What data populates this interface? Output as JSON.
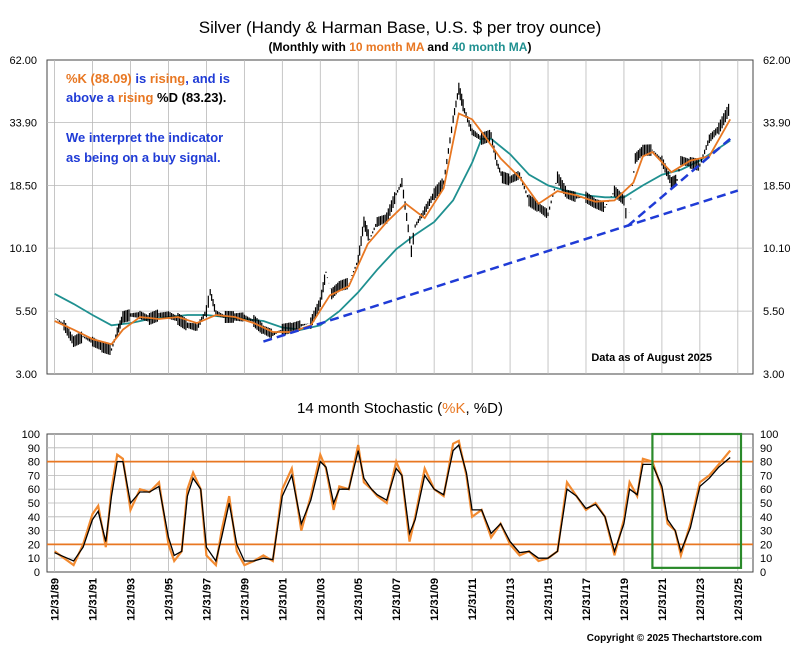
{
  "colors": {
    "price": "#000000",
    "ma10": "#e87722",
    "ma40": "#1f9090",
    "trendline": "#1f3bd6",
    "stoch_k": "#f28a30",
    "stoch_d": "#000000",
    "ref_lines": "#e87722",
    "highlight_box": "#2a8a2a",
    "annotation_blue": "#1f3bd6",
    "annotation_orange": "#e87722",
    "grid": "#b8b8b8"
  },
  "chart_data": [
    {
      "type": "line",
      "title": "Silver (Handy & Harman Base, U.S. $ per troy ounce)",
      "subtitle": {
        "prefix": "(Monthly with ",
        "ma10": "10 month MA",
        "middle": " and ",
        "ma40": "40 month MA",
        "suffix": ")"
      },
      "y_scale": "log",
      "ylim": [
        3.0,
        62.0
      ],
      "y_ticks": [
        3.0,
        5.5,
        10.1,
        18.5,
        33.9,
        62.0
      ],
      "y_tick_labels": [
        "3.00",
        "5.50",
        "10.10",
        "18.50",
        "33.90",
        "62.00"
      ],
      "xlim": [
        1989.6,
        2026.8
      ],
      "grid": true,
      "series": [
        {
          "name": "Silver monthly",
          "x": [
            1990.0,
            1990.5,
            1991.0,
            1991.5,
            1992.0,
            1992.5,
            1993.0,
            1993.3,
            1993.6,
            1994.0,
            1994.5,
            1995.0,
            1995.5,
            1996.0,
            1996.5,
            1997.0,
            1997.5,
            1998.0,
            1998.2,
            1998.5,
            1999.0,
            1999.5,
            2000.0,
            2000.5,
            2001.0,
            2001.5,
            2002.0,
            2002.5,
            2003.0,
            2003.5,
            2004.0,
            2004.3,
            2004.6,
            2005.0,
            2005.5,
            2006.0,
            2006.3,
            2006.6,
            2007.0,
            2007.5,
            2008.0,
            2008.3,
            2008.8,
            2009.0,
            2009.5,
            2010.0,
            2010.5,
            2011.0,
            2011.3,
            2011.6,
            2012.0,
            2012.5,
            2013.0,
            2013.3,
            2013.6,
            2014.0,
            2014.5,
            2015.0,
            2015.5,
            2016.0,
            2016.5,
            2017.0,
            2017.5,
            2018.0,
            2018.5,
            2019.0,
            2019.5,
            2020.0,
            2020.2,
            2020.6,
            2021.0,
            2021.5,
            2022.0,
            2022.5,
            2022.8,
            2023.0,
            2023.5,
            2024.0,
            2024.5,
            2025.0,
            2025.6
          ],
          "values": [
            5.2,
            4.8,
            4.1,
            4.3,
            4.1,
            3.9,
            3.8,
            4.5,
            5.2,
            5.3,
            5.3,
            5.1,
            5.3,
            5.3,
            5.1,
            4.8,
            4.7,
            5.5,
            6.6,
            5.4,
            5.2,
            5.2,
            5.2,
            5.0,
            4.6,
            4.4,
            4.6,
            4.7,
            4.8,
            4.9,
            6.0,
            8.0,
            6.5,
            7.0,
            7.2,
            9.0,
            13.0,
            11.0,
            13.0,
            13.5,
            17.0,
            19.0,
            9.8,
            12.5,
            14.5,
            17.0,
            19.0,
            35.0,
            47.0,
            38.0,
            31.0,
            29.0,
            30.0,
            23.0,
            20.0,
            19.5,
            20.5,
            16.0,
            15.0,
            14.0,
            20.0,
            17.0,
            16.5,
            16.5,
            15.5,
            15.0,
            17.5,
            16.0,
            12.5,
            24.0,
            26.0,
            26.0,
            23.5,
            19.0,
            19.5,
            23.5,
            23.0,
            22.5,
            29.0,
            32.0,
            39.5
          ],
          "values_note": "price (log axis)"
        },
        {
          "name": "10 month MA",
          "x": [
            1990.0,
            1991.0,
            1992.0,
            1993.0,
            1993.6,
            1994.5,
            1995.5,
            1996.5,
            1997.5,
            1998.5,
            1999.5,
            2000.5,
            2001.5,
            2002.5,
            2003.5,
            2004.5,
            2005.5,
            2006.5,
            2007.5,
            2008.5,
            2009.5,
            2010.5,
            2011.3,
            2012.0,
            2012.5,
            2013.5,
            2014.5,
            2015.5,
            2016.5,
            2017.5,
            2018.5,
            2019.5,
            2020.5,
            2021.0,
            2021.5,
            2022.5,
            2023.5,
            2024.5,
            2025.6
          ],
          "values": [
            5.0,
            4.6,
            4.2,
            4.0,
            4.6,
            5.2,
            5.1,
            5.2,
            4.9,
            5.3,
            5.2,
            4.9,
            4.5,
            4.5,
            4.8,
            6.4,
            7.0,
            10.5,
            13.0,
            15.5,
            13.5,
            18.0,
            37.0,
            35.0,
            31.0,
            24.0,
            20.0,
            15.5,
            17.5,
            16.8,
            15.8,
            16.0,
            19.0,
            24.5,
            25.5,
            21.0,
            23.5,
            24.5,
            35.0
          ]
        },
        {
          "name": "40 month MA",
          "x": [
            1990.0,
            1991.0,
            1992.0,
            1993.0,
            1994.0,
            1995.0,
            1996.0,
            1997.0,
            1998.0,
            1999.0,
            2000.0,
            2001.0,
            2002.0,
            2003.0,
            2004.0,
            2005.0,
            2006.0,
            2007.0,
            2008.0,
            2009.0,
            2010.0,
            2011.0,
            2012.0,
            2012.5,
            2013.0,
            2014.0,
            2015.0,
            2016.0,
            2017.0,
            2018.0,
            2019.0,
            2020.0,
            2021.0,
            2022.0,
            2023.0,
            2024.0,
            2025.6
          ],
          "values": [
            6.5,
            5.9,
            5.3,
            4.8,
            4.9,
            5.1,
            5.2,
            5.3,
            5.3,
            5.2,
            5.1,
            5.0,
            4.7,
            4.6,
            4.8,
            5.5,
            6.6,
            8.2,
            10.0,
            11.5,
            13.0,
            16.0,
            23.0,
            29.0,
            29.0,
            25.0,
            20.5,
            18.5,
            17.5,
            16.8,
            16.5,
            16.5,
            18.5,
            20.5,
            21.5,
            23.5,
            28.5
          ]
        },
        {
          "name": "long-term trendline",
          "x": [
            2001.0,
            2026.0
          ],
          "values": [
            4.1,
            17.6
          ]
        },
        {
          "name": "short-term trendline",
          "x": [
            2020.2,
            2025.6
          ],
          "values": [
            12.5,
            29.0
          ]
        }
      ],
      "annotations": [
        {
          "segments": [
            {
              "text": "%K (88.09)",
              "color": "orange"
            },
            {
              "text": " is ",
              "color": "blue"
            },
            {
              "text": "rising",
              "color": "orange"
            },
            {
              "text": ", and is",
              "color": "blue"
            }
          ]
        },
        {
          "segments": [
            {
              "text": "above a ",
              "color": "blue"
            },
            {
              "text": "rising",
              "color": "orange"
            },
            {
              "text": " %D (83.23).",
              "color": "black"
            }
          ]
        },
        {
          "segments": [
            {
              "text": "We interpret the indicator",
              "color": "blue"
            }
          ]
        },
        {
          "segments": [
            {
              "text": "as being on a buy signal.",
              "color": "blue"
            }
          ]
        }
      ],
      "data_note": "Data as of August 2025"
    },
    {
      "type": "line",
      "title": {
        "prefix": "14 month Stochastic (",
        "k": "%K",
        "sep": ", ",
        "d": "%D",
        "suffix": ")"
      },
      "ylim": [
        0,
        100
      ],
      "y_ticks": [
        0,
        10,
        20,
        30,
        40,
        50,
        60,
        70,
        80,
        90,
        100
      ],
      "y_tick_labels": [
        "0",
        "10",
        "20",
        "30",
        "40",
        "50",
        "60",
        "70",
        "80",
        "90",
        "100"
      ],
      "reference_lines": [
        80,
        20
      ],
      "x_tick_labels": [
        "12/31/89",
        "12/31/91",
        "12/31/93",
        "12/31/95",
        "12/31/97",
        "12/31/99",
        "12/31/01",
        "12/31/03",
        "12/31/05",
        "12/31/07",
        "12/31/09",
        "12/31/11",
        "12/31/13",
        "12/31/15",
        "12/31/17",
        "12/31/19",
        "12/31/21",
        "12/31/23",
        "12/31/25"
      ],
      "x_tick_values": [
        1990,
        1992,
        1994,
        1996,
        1998,
        2000,
        2002,
        2004,
        2006,
        2008,
        2010,
        2012,
        2014,
        2016,
        2018,
        2020,
        2022,
        2024,
        2026
      ],
      "highlight_range": {
        "x": [
          2021.5,
          2026.8
        ],
        "y": [
          3,
          100
        ]
      },
      "series": [
        {
          "name": "%K",
          "x": [
            1990.0,
            1990.5,
            1991.0,
            1991.5,
            1992.0,
            1992.3,
            1992.7,
            1993.0,
            1993.3,
            1993.6,
            1994.0,
            1994.5,
            1995.0,
            1995.5,
            1996.0,
            1996.3,
            1996.7,
            1997.0,
            1997.3,
            1997.7,
            1998.0,
            1998.5,
            1998.8,
            1999.2,
            1999.6,
            2000.0,
            2000.5,
            2001.0,
            2001.5,
            2002.0,
            2002.5,
            2003.0,
            2003.5,
            2004.0,
            2004.3,
            2004.7,
            2005.0,
            2005.5,
            2006.0,
            2006.3,
            2006.7,
            2007.0,
            2007.5,
            2008.0,
            2008.3,
            2008.7,
            2009.0,
            2009.5,
            2010.0,
            2010.5,
            2011.0,
            2011.3,
            2011.7,
            2012.0,
            2012.5,
            2013.0,
            2013.5,
            2014.0,
            2014.5,
            2015.0,
            2015.5,
            2016.0,
            2016.5,
            2017.0,
            2017.5,
            2018.0,
            2018.5,
            2019.0,
            2019.5,
            2020.0,
            2020.3,
            2020.7,
            2021.0,
            2021.5,
            2022.0,
            2022.3,
            2022.7,
            2023.0,
            2023.5,
            2024.0,
            2024.5,
            2025.0,
            2025.6
          ],
          "values": [
            15,
            10,
            5,
            20,
            42,
            48,
            18,
            60,
            85,
            82,
            45,
            60,
            58,
            65,
            20,
            8,
            15,
            60,
            72,
            60,
            12,
            5,
            30,
            55,
            15,
            5,
            8,
            12,
            8,
            60,
            75,
            30,
            55,
            85,
            75,
            45,
            62,
            60,
            92,
            65,
            60,
            55,
            50,
            80,
            70,
            22,
            40,
            75,
            60,
            55,
            93,
            95,
            70,
            40,
            45,
            25,
            35,
            20,
            12,
            15,
            8,
            10,
            15,
            65,
            55,
            45,
            50,
            40,
            12,
            38,
            65,
            55,
            82,
            80,
            60,
            35,
            30,
            12,
            35,
            65,
            70,
            78,
            88
          ]
        },
        {
          "name": "%D",
          "x": [
            1990.0,
            1990.5,
            1991.0,
            1991.5,
            1992.0,
            1992.3,
            1992.7,
            1993.0,
            1993.3,
            1993.6,
            1994.0,
            1994.5,
            1995.0,
            1995.5,
            1996.0,
            1996.3,
            1996.7,
            1997.0,
            1997.3,
            1997.7,
            1998.0,
            1998.5,
            1998.8,
            1999.2,
            1999.6,
            2000.0,
            2000.5,
            2001.0,
            2001.5,
            2002.0,
            2002.5,
            2003.0,
            2003.5,
            2004.0,
            2004.3,
            2004.7,
            2005.0,
            2005.5,
            2006.0,
            2006.3,
            2006.7,
            2007.0,
            2007.5,
            2008.0,
            2008.3,
            2008.7,
            2009.0,
            2009.5,
            2010.0,
            2010.5,
            2011.0,
            2011.3,
            2011.7,
            2012.0,
            2012.5,
            2013.0,
            2013.5,
            2014.0,
            2014.5,
            2015.0,
            2015.5,
            2016.0,
            2016.5,
            2017.0,
            2017.5,
            2018.0,
            2018.5,
            2019.0,
            2019.5,
            2020.0,
            2020.3,
            2020.7,
            2021.0,
            2021.5,
            2022.0,
            2022.3,
            2022.7,
            2023.0,
            2023.5,
            2024.0,
            2024.5,
            2025.0,
            2025.6
          ],
          "values": [
            14,
            11,
            8,
            18,
            38,
            44,
            22,
            55,
            80,
            80,
            50,
            58,
            58,
            62,
            25,
            12,
            15,
            55,
            68,
            60,
            18,
            8,
            25,
            50,
            20,
            8,
            8,
            10,
            9,
            55,
            70,
            35,
            52,
            80,
            76,
            50,
            60,
            60,
            88,
            68,
            60,
            56,
            52,
            75,
            70,
            28,
            38,
            70,
            60,
            56,
            88,
            92,
            72,
            45,
            45,
            28,
            35,
            22,
            14,
            15,
            10,
            10,
            15,
            60,
            55,
            46,
            49,
            40,
            15,
            35,
            60,
            56,
            78,
            78,
            62,
            38,
            30,
            15,
            32,
            62,
            68,
            76,
            83
          ]
        }
      ]
    }
  ],
  "footer": {
    "copyright": "Copyright © 2025 Thechartstore.com"
  }
}
